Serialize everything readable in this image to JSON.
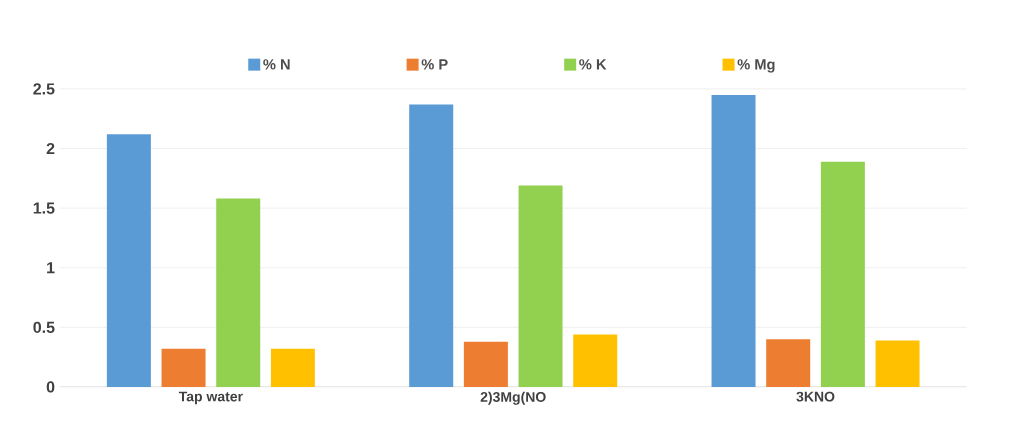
{
  "chart_data": {
    "type": "bar",
    "categories": [
      "Tap water",
      "2)3Mg(NO",
      "3KNO"
    ],
    "series": [
      {
        "name": "% N",
        "color": "#5b9bd5",
        "values": [
          2.12,
          2.37,
          2.45
        ]
      },
      {
        "name": "% P",
        "color": "#ed7d31",
        "values": [
          0.32,
          0.38,
          0.4
        ]
      },
      {
        "name": "% K",
        "color": "#92d050",
        "values": [
          1.58,
          1.69,
          1.89
        ]
      },
      {
        "name": "% Mg",
        "color": "#ffc000",
        "values": [
          0.32,
          0.44,
          0.39
        ]
      }
    ],
    "ylim": [
      0,
      2.5
    ],
    "yticks": [
      0,
      0.5,
      1,
      1.5,
      2,
      2.5
    ],
    "grid": "y",
    "legend": "top"
  }
}
